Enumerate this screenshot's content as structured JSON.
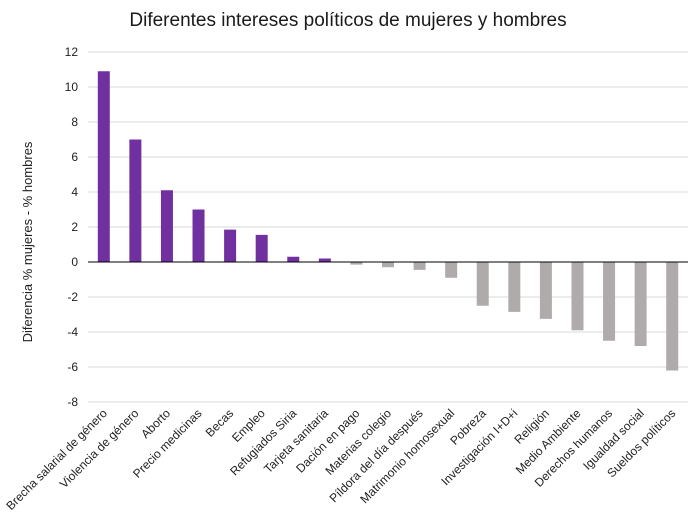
{
  "chart_data": {
    "type": "bar",
    "title": "Diferentes intereses políticos de mujeres y hombres",
    "xlabel": "",
    "ylabel": "Diferencia % mujeres  - % hombres",
    "ylim": [
      -8,
      12
    ],
    "yticks": [
      12,
      10,
      8,
      6,
      4,
      2,
      0,
      -2,
      -4,
      -6,
      -8
    ],
    "grid": true,
    "categories": [
      "Brecha salarial de género",
      "Violencia de género",
      "Aborto",
      "Precio medicinas",
      "Becas",
      "Empleo",
      "Refugiados Siria",
      "Tarjeta sanitaria",
      "Dación en pago",
      "Materias colegio",
      "Píldora del día después",
      "Matrimonio homosexual",
      "Pobreza",
      "Investigación I+D+i",
      "Religión",
      "Medio Ambiente",
      "Derechos humanos",
      "Igualdad social",
      "Sueldos políticos"
    ],
    "values": [
      10.9,
      7.0,
      4.1,
      3.0,
      1.85,
      1.55,
      0.3,
      0.2,
      -0.15,
      -0.3,
      -0.45,
      -0.9,
      -2.5,
      -2.85,
      -3.25,
      -3.9,
      -4.5,
      -4.8,
      -6.2
    ],
    "colors": {
      "positive": "#7030A0",
      "negative": "#AFABAB",
      "grid": "#D9D9D9",
      "axis": "#000000"
    }
  }
}
